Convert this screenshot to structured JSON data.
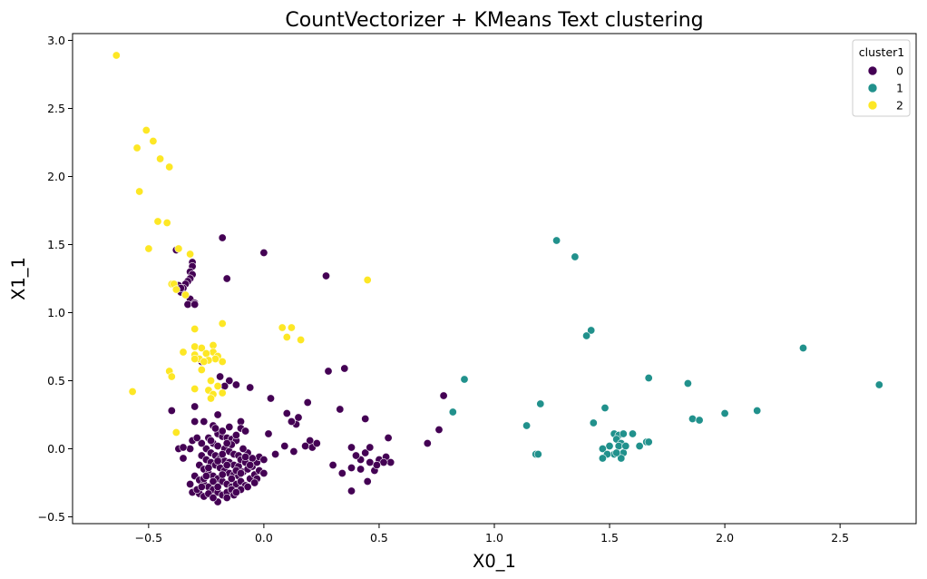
{
  "chart_data": {
    "type": "scatter",
    "title": "CountVectorizer + KMeans Text clustering",
    "xlabel": "X0_1",
    "ylabel": "X1_1",
    "xlim": [
      -0.83,
      2.83
    ],
    "ylim": [
      -0.55,
      3.05
    ],
    "x_ticks": [
      -0.5,
      0.0,
      0.5,
      1.0,
      1.5,
      2.0,
      2.5
    ],
    "x_tick_labels": [
      "−0.5",
      "0.0",
      "0.5",
      "1.0",
      "1.5",
      "2.0",
      "2.5"
    ],
    "y_ticks": [
      -0.5,
      0.0,
      0.5,
      1.0,
      1.5,
      2.0,
      2.5,
      3.0
    ],
    "y_tick_labels": [
      "−0.5",
      "0.0",
      "0.5",
      "1.0",
      "1.5",
      "2.0",
      "2.5",
      "3.0"
    ],
    "grid": false,
    "legend": {
      "title": "cluster1",
      "placement": "top-right",
      "entries": [
        "0",
        "1",
        "2"
      ]
    },
    "colors": {
      "0": "#440154",
      "1": "#21918c",
      "2": "#fde725"
    },
    "series": [
      {
        "name": "0",
        "points": [
          [
            -0.18,
            1.55
          ],
          [
            0.0,
            1.44
          ],
          [
            -0.38,
            1.46
          ],
          [
            -0.16,
            1.25
          ],
          [
            0.27,
            1.27
          ],
          [
            -0.31,
            1.37
          ],
          [
            -0.31,
            1.34
          ],
          [
            -0.32,
            1.3
          ],
          [
            -0.31,
            1.28
          ],
          [
            -0.32,
            1.25
          ],
          [
            -0.33,
            1.23
          ],
          [
            -0.34,
            1.21
          ],
          [
            -0.35,
            1.18
          ],
          [
            -0.36,
            1.15
          ],
          [
            -0.34,
            1.13
          ],
          [
            -0.32,
            1.1
          ],
          [
            -0.3,
            1.07
          ],
          [
            -0.33,
            1.06
          ],
          [
            -0.3,
            1.06
          ],
          [
            -0.37,
            1.2
          ],
          [
            -0.36,
            1.18
          ],
          [
            0.35,
            0.59
          ],
          [
            0.28,
            0.57
          ],
          [
            -0.19,
            0.53
          ],
          [
            -0.15,
            0.5
          ],
          [
            -0.17,
            0.46
          ],
          [
            -0.12,
            0.47
          ],
          [
            -0.06,
            0.45
          ],
          [
            -0.27,
            0.64
          ],
          [
            -0.4,
            0.28
          ],
          [
            0.03,
            0.37
          ],
          [
            -0.3,
            0.31
          ],
          [
            -0.2,
            0.25
          ],
          [
            0.78,
            0.39
          ],
          [
            0.76,
            0.14
          ],
          [
            0.33,
            0.29
          ],
          [
            0.44,
            0.22
          ],
          [
            0.19,
            0.34
          ],
          [
            0.1,
            0.26
          ],
          [
            0.14,
            0.18
          ],
          [
            0.15,
            0.23
          ],
          [
            0.12,
            0.2
          ],
          [
            0.71,
            0.04
          ],
          [
            0.54,
            0.08
          ],
          [
            0.2,
            0.06
          ],
          [
            0.18,
            0.02
          ],
          [
            0.21,
            0.01
          ],
          [
            0.23,
            0.04
          ],
          [
            0.05,
            -0.04
          ],
          [
            0.09,
            0.02
          ],
          [
            0.13,
            -0.02
          ],
          [
            0.3,
            -0.12
          ],
          [
            0.34,
            -0.18
          ],
          [
            0.38,
            -0.14
          ],
          [
            0.42,
            -0.15
          ],
          [
            0.38,
            -0.31
          ],
          [
            0.45,
            -0.24
          ],
          [
            0.48,
            -0.16
          ],
          [
            0.46,
            -0.1
          ],
          [
            0.42,
            -0.08
          ],
          [
            0.5,
            -0.08
          ],
          [
            0.53,
            -0.06
          ],
          [
            0.55,
            -0.1
          ],
          [
            0.52,
            -0.1
          ],
          [
            0.49,
            -0.12
          ],
          [
            0.4,
            -0.05
          ],
          [
            0.44,
            -0.03
          ],
          [
            0.46,
            0.01
          ],
          [
            0.38,
            0.01
          ],
          [
            -0.37,
            0.0
          ],
          [
            -0.35,
            -0.07
          ],
          [
            -0.32,
            0.0
          ],
          [
            -0.35,
            0.01
          ],
          [
            -0.3,
            0.2
          ],
          [
            -0.31,
            0.06
          ],
          [
            0.02,
            0.11
          ],
          [
            -0.1,
            0.2
          ],
          [
            -0.26,
            0.2
          ],
          [
            -0.22,
            0.17
          ],
          [
            -0.15,
            0.16
          ],
          [
            -0.1,
            0.15
          ],
          [
            -0.08,
            0.13
          ],
          [
            -0.2,
            0.11
          ],
          [
            -0.18,
            0.09
          ],
          [
            -0.16,
            0.08
          ],
          [
            -0.14,
            0.07
          ],
          [
            -0.12,
            0.06
          ],
          [
            -0.24,
            0.08
          ],
          [
            -0.22,
            0.04
          ],
          [
            -0.2,
            0.02
          ],
          [
            -0.17,
            0.0
          ],
          [
            -0.15,
            -0.02
          ],
          [
            -0.13,
            -0.04
          ],
          [
            -0.11,
            -0.05
          ],
          [
            -0.25,
            0.0
          ],
          [
            -0.23,
            -0.03
          ],
          [
            -0.21,
            -0.05
          ],
          [
            -0.19,
            -0.07
          ],
          [
            -0.17,
            -0.09
          ],
          [
            -0.15,
            -0.1
          ],
          [
            -0.13,
            -0.12
          ],
          [
            -0.11,
            -0.13
          ],
          [
            -0.27,
            -0.05
          ],
          [
            -0.25,
            -0.08
          ],
          [
            -0.23,
            -0.1
          ],
          [
            -0.21,
            -0.12
          ],
          [
            -0.19,
            -0.14
          ],
          [
            -0.17,
            -0.16
          ],
          [
            -0.15,
            -0.18
          ],
          [
            -0.13,
            -0.19
          ],
          [
            -0.11,
            -0.2
          ],
          [
            -0.09,
            -0.17
          ],
          [
            -0.07,
            -0.15
          ],
          [
            -0.05,
            -0.13
          ],
          [
            -0.03,
            -0.1
          ],
          [
            -0.02,
            -0.06
          ],
          [
            0.0,
            -0.08
          ],
          [
            -0.28,
            -0.12
          ],
          [
            -0.26,
            -0.15
          ],
          [
            -0.24,
            -0.18
          ],
          [
            -0.22,
            -0.2
          ],
          [
            -0.2,
            -0.22
          ],
          [
            -0.18,
            -0.24
          ],
          [
            -0.16,
            -0.26
          ],
          [
            -0.14,
            -0.28
          ],
          [
            -0.12,
            -0.26
          ],
          [
            -0.1,
            -0.24
          ],
          [
            -0.08,
            -0.27
          ],
          [
            -0.06,
            -0.22
          ],
          [
            -0.04,
            -0.19
          ],
          [
            -0.02,
            -0.16
          ],
          [
            -0.3,
            -0.2
          ],
          [
            -0.28,
            -0.23
          ],
          [
            -0.26,
            -0.26
          ],
          [
            -0.24,
            -0.28
          ],
          [
            -0.22,
            -0.3
          ],
          [
            -0.2,
            -0.32
          ],
          [
            -0.18,
            -0.34
          ],
          [
            -0.16,
            -0.32
          ],
          [
            -0.14,
            -0.3
          ],
          [
            -0.3,
            -0.31
          ],
          [
            -0.28,
            -0.33
          ],
          [
            -0.26,
            -0.35
          ],
          [
            -0.24,
            -0.33
          ],
          [
            -0.2,
            -0.39
          ],
          [
            -0.22,
            -0.36
          ],
          [
            -0.31,
            -0.32
          ],
          [
            -0.29,
            -0.3
          ],
          [
            -0.27,
            -0.28
          ],
          [
            -0.32,
            -0.26
          ],
          [
            -0.07,
            -0.28
          ],
          [
            -0.1,
            -0.3
          ],
          [
            -0.13,
            -0.34
          ],
          [
            -0.16,
            -0.36
          ],
          [
            -0.03,
            -0.22
          ],
          [
            0.0,
            -0.18
          ],
          [
            -0.05,
            -0.07
          ],
          [
            -0.07,
            -0.03
          ],
          [
            -0.09,
            0.0
          ],
          [
            -0.27,
            0.04
          ],
          [
            -0.29,
            0.08
          ],
          [
            -0.21,
            0.15
          ],
          [
            -0.18,
            0.13
          ],
          [
            -0.12,
            0.1
          ],
          [
            -0.14,
            0.03
          ],
          [
            -0.1,
            -0.08
          ],
          [
            -0.08,
            -0.1
          ],
          [
            -0.06,
            -0.12
          ],
          [
            -0.12,
            -0.16
          ],
          [
            -0.16,
            -0.12
          ],
          [
            -0.2,
            -0.09
          ],
          [
            -0.24,
            -0.14
          ],
          [
            -0.18,
            -0.19
          ],
          [
            -0.22,
            -0.24
          ],
          [
            -0.26,
            -0.22
          ],
          [
            -0.14,
            -0.22
          ],
          [
            -0.1,
            -0.18
          ],
          [
            -0.04,
            -0.25
          ],
          [
            -0.08,
            -0.06
          ],
          [
            -0.18,
            -0.04
          ],
          [
            -0.23,
            0.06
          ],
          [
            -0.16,
            0.04
          ],
          [
            -0.25,
            -0.2
          ],
          [
            -0.2,
            -0.28
          ],
          [
            -0.12,
            -0.32
          ]
        ]
      },
      {
        "name": "1",
        "points": [
          [
            1.27,
            1.53
          ],
          [
            1.35,
            1.41
          ],
          [
            1.42,
            0.87
          ],
          [
            1.4,
            0.83
          ],
          [
            2.34,
            0.74
          ],
          [
            2.67,
            0.47
          ],
          [
            1.67,
            0.52
          ],
          [
            1.84,
            0.48
          ],
          [
            0.87,
            0.51
          ],
          [
            1.2,
            0.33
          ],
          [
            1.48,
            0.3
          ],
          [
            1.43,
            0.19
          ],
          [
            1.14,
            0.17
          ],
          [
            0.82,
            0.27
          ],
          [
            2.14,
            0.28
          ],
          [
            2.0,
            0.26
          ],
          [
            1.86,
            0.22
          ],
          [
            1.89,
            0.21
          ],
          [
            1.52,
            0.11
          ],
          [
            1.54,
            0.1
          ],
          [
            1.56,
            0.11
          ],
          [
            1.53,
            0.07
          ],
          [
            1.6,
            0.11
          ],
          [
            1.55,
            0.04
          ],
          [
            1.5,
            0.02
          ],
          [
            1.54,
            0.02
          ],
          [
            1.56,
            -0.03
          ],
          [
            1.52,
            -0.04
          ],
          [
            1.47,
            0.0
          ],
          [
            1.49,
            -0.04
          ],
          [
            1.47,
            -0.07
          ],
          [
            1.55,
            -0.07
          ],
          [
            1.18,
            -0.04
          ],
          [
            1.19,
            -0.04
          ],
          [
            1.63,
            0.02
          ],
          [
            1.66,
            0.05
          ],
          [
            1.67,
            0.05
          ],
          [
            1.53,
            -0.03
          ],
          [
            1.57,
            0.02
          ]
        ]
      },
      {
        "name": "2",
        "points": [
          [
            -0.64,
            2.89
          ],
          [
            -0.51,
            2.34
          ],
          [
            -0.48,
            2.26
          ],
          [
            -0.55,
            2.21
          ],
          [
            -0.45,
            2.13
          ],
          [
            -0.41,
            2.07
          ],
          [
            -0.54,
            1.89
          ],
          [
            -0.46,
            1.67
          ],
          [
            -0.42,
            1.66
          ],
          [
            -0.5,
            1.47
          ],
          [
            -0.37,
            1.47
          ],
          [
            -0.32,
            1.43
          ],
          [
            0.45,
            1.24
          ],
          [
            -0.4,
            1.21
          ],
          [
            -0.39,
            1.21
          ],
          [
            -0.38,
            1.17
          ],
          [
            -0.34,
            1.13
          ],
          [
            0.08,
            0.89
          ],
          [
            0.12,
            0.89
          ],
          [
            0.1,
            0.82
          ],
          [
            -0.3,
            0.88
          ],
          [
            -0.18,
            0.92
          ],
          [
            0.16,
            0.8
          ],
          [
            -0.3,
            0.75
          ],
          [
            -0.27,
            0.74
          ],
          [
            -0.22,
            0.76
          ],
          [
            -0.35,
            0.71
          ],
          [
            -0.22,
            0.71
          ],
          [
            -0.25,
            0.7
          ],
          [
            -0.3,
            0.69
          ],
          [
            -0.2,
            0.68
          ],
          [
            -0.28,
            0.66
          ],
          [
            -0.21,
            0.66
          ],
          [
            -0.24,
            0.65
          ],
          [
            -0.26,
            0.64
          ],
          [
            -0.3,
            0.66
          ],
          [
            -0.18,
            0.64
          ],
          [
            -0.41,
            0.57
          ],
          [
            -0.4,
            0.53
          ],
          [
            -0.57,
            0.42
          ],
          [
            -0.3,
            0.44
          ],
          [
            -0.2,
            0.46
          ],
          [
            -0.24,
            0.43
          ],
          [
            -0.22,
            0.4
          ],
          [
            -0.18,
            0.41
          ],
          [
            -0.23,
            0.37
          ],
          [
            -0.38,
            0.12
          ],
          [
            -0.23,
            0.5
          ],
          [
            -0.27,
            0.58
          ]
        ]
      }
    ]
  }
}
